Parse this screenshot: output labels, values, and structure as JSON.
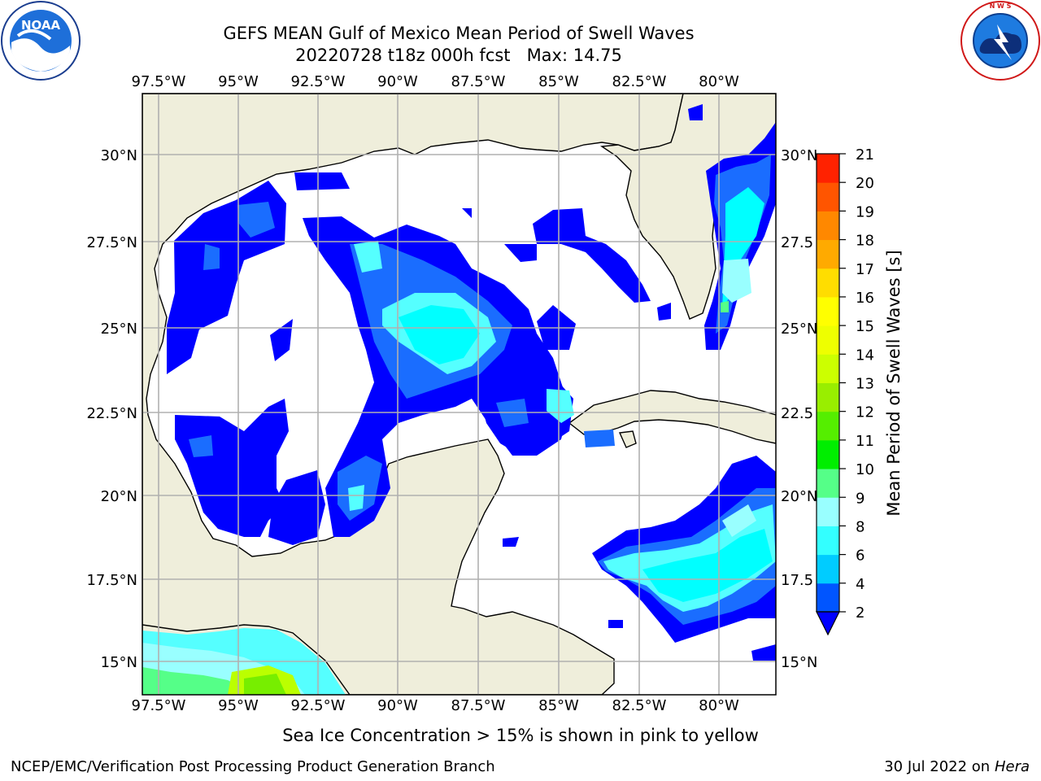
{
  "title": {
    "line1": "GEFS MEAN Gulf of Mexico Mean Period of Swell Waves",
    "line2": "20220728 t18z 000h fcst   Max: 14.75"
  },
  "logos": {
    "noara_text": "NOAA",
    "noaa_ring": "NATIONAL OCEANIC AND ATMOSPHERIC ADMINISTRATION · U.S. DEPARTMENT OF COMMERCE",
    "nws_ring": "NATIONAL WEATHER SERVICE"
  },
  "map": {
    "lon_labels": [
      "97.5°W",
      "95°W",
      "92.5°W",
      "90°W",
      "87.5°W",
      "85°W",
      "82.5°W",
      "80°W"
    ],
    "lat_labels_left": [
      "30°N",
      "27.5°N",
      "25°N",
      "22.5°N",
      "20°N",
      "17.5°N",
      "15°N"
    ],
    "lat_labels_right": [
      "30°N",
      "27.5",
      "25°N",
      "22.5",
      "20°N",
      "17.5",
      "15°N"
    ]
  },
  "colorbar": {
    "label": "Mean Period of Swell Waves [s]",
    "ticks": [
      "2",
      "4",
      "6",
      "8",
      "9",
      "10",
      "11",
      "12",
      "13",
      "14",
      "15",
      "16",
      "17",
      "18",
      "19",
      "20",
      "21"
    ],
    "colors": [
      "#0055ff",
      "#00ccff",
      "#33ffff",
      "#99ffff",
      "#55ff88",
      "#00ee00",
      "#55ee00",
      "#99ee00",
      "#ccff00",
      "#eeff00",
      "#ffff00",
      "#ffdd00",
      "#ffaa00",
      "#ff8800",
      "#ff5500",
      "#ff2200"
    ],
    "under_color": "#0000ff"
  },
  "colors": {
    "land": "#efeedb",
    "level_2": "#0000ff",
    "level_4": "#1a6dff",
    "level_6": "#00ffff",
    "level_8": "#55ffff",
    "level_9": "#99ffff",
    "level_10": "#55ff88",
    "level_12": "#77ee00",
    "level_13": "#bbff00"
  },
  "subtitle": "Sea Ice Concentration > 15% is shown in pink to yellow",
  "footer": {
    "left": "NCEP/EMC/Verification Post Processing Product Generation Branch",
    "right_prefix": "30 Jul 2022 on ",
    "right_host": "Hera"
  }
}
